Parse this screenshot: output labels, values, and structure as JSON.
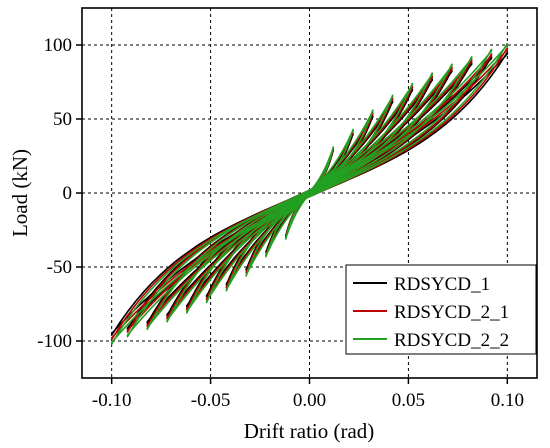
{
  "chart_data": {
    "type": "line",
    "xlabel": "Drift ratio (rad)",
    "ylabel": "Load (kN)",
    "xlim": [
      -0.115,
      0.115
    ],
    "ylim": [
      -125,
      125
    ],
    "x_ticks": [
      -0.1,
      -0.05,
      0.0,
      0.05,
      0.1
    ],
    "x_tick_labels": [
      "-0.10",
      "-0.05",
      "0.00",
      "0.05",
      "0.10"
    ],
    "y_ticks": [
      -100,
      -50,
      0,
      50,
      100
    ],
    "y_tick_labels": [
      "-100",
      "-50",
      "0",
      "50",
      "100"
    ],
    "grid": "dotted",
    "legend_position": "bottom-right",
    "series": [
      {
        "name": "RDSYCD_1",
        "color": "#000000",
        "loading_amplitudes": [
          0.012,
          0.022,
          0.032,
          0.042,
          0.052,
          0.062,
          0.072,
          0.082,
          0.092,
          0.1
        ],
        "peak_load_pos": [
          29,
          40,
          52,
          62,
          70,
          77,
          83,
          88,
          92,
          95
        ],
        "peak_load_neg": [
          -29,
          -40,
          -52,
          -62,
          -70,
          -77,
          -83,
          -88,
          -92,
          -96
        ]
      },
      {
        "name": "RDSYCD_2_1",
        "color": "#c00000",
        "loading_amplitudes": [
          0.012,
          0.022,
          0.032,
          0.042,
          0.052,
          0.062,
          0.072,
          0.082,
          0.092,
          0.1
        ],
        "peak_load_pos": [
          30,
          42,
          54,
          64,
          72,
          79,
          85,
          90,
          94,
          98
        ],
        "peak_load_neg": [
          -30,
          -42,
          -54,
          -64,
          -72,
          -79,
          -85,
          -90,
          -94,
          -99
        ]
      },
      {
        "name": "RDSYCD_2_2",
        "color": "#22a022",
        "loading_amplitudes": [
          0.012,
          0.022,
          0.032,
          0.042,
          0.052,
          0.062,
          0.072,
          0.082,
          0.092,
          0.1
        ],
        "peak_load_pos": [
          31,
          43,
          56,
          66,
          74,
          81,
          87,
          92,
          97,
          101
        ],
        "peak_load_neg": [
          -31,
          -43,
          -56,
          -66,
          -74,
          -81,
          -87,
          -92,
          -97,
          -102
        ]
      }
    ]
  }
}
